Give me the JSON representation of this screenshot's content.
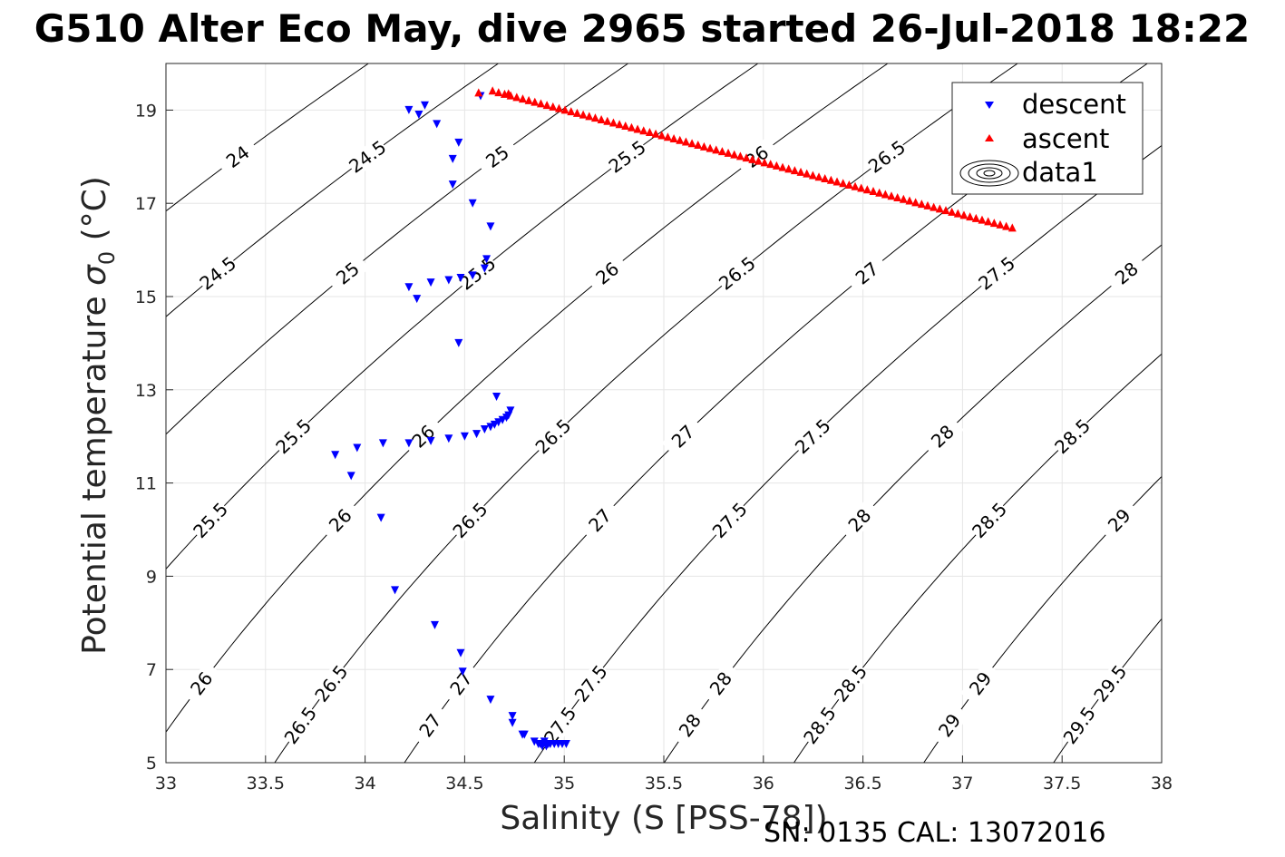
{
  "chart_data": {
    "type": "scatter",
    "title": "G510 Alter Eco May, dive 2965 started 26-Jul-2018 18:22",
    "xlabel": "Salinity (S [PSS-78])",
    "ylabel_text": "Potential temperature ",
    "ylabel_symbol": "σ",
    "ylabel_subscript": "0",
    "ylabel_unit": " (°C)",
    "footer": "SN: 0135  CAL: 13072016",
    "xlim": [
      33,
      38
    ],
    "ylim": [
      5,
      20
    ],
    "xticks": [
      33,
      33.5,
      34,
      34.5,
      35,
      35.5,
      36,
      36.5,
      37,
      37.5,
      38
    ],
    "xtick_labels": [
      "33",
      "33.5",
      "34",
      "34.5",
      "35",
      "35.5",
      "36",
      "36.5",
      "37",
      "37.5",
      "38"
    ],
    "yticks": [
      5,
      7,
      9,
      11,
      13,
      15,
      17,
      19
    ],
    "ytick_labels": [
      "5",
      "7",
      "9",
      "11",
      "13",
      "15",
      "17",
      "19"
    ],
    "grid": true,
    "legend_position": "top-right",
    "legend": [
      "descent",
      "ascent",
      "data1"
    ],
    "colors": {
      "descent": "#0000ff",
      "ascent": "#ff0000",
      "contour": "#000000",
      "grid": "#e6e6e6"
    },
    "series": [
      {
        "name": "descent",
        "marker": "down-triangle",
        "points": [
          [
            34.58,
            19.3
          ],
          [
            34.22,
            19.0
          ],
          [
            34.3,
            19.1
          ],
          [
            34.27,
            18.9
          ],
          [
            34.36,
            18.7
          ],
          [
            34.47,
            18.3
          ],
          [
            34.44,
            17.95
          ],
          [
            34.44,
            17.4
          ],
          [
            34.54,
            17.0
          ],
          [
            34.63,
            16.5
          ],
          [
            34.61,
            15.8
          ],
          [
            34.6,
            15.6
          ],
          [
            34.54,
            15.45
          ],
          [
            34.48,
            15.4
          ],
          [
            34.42,
            15.35
          ],
          [
            34.33,
            15.3
          ],
          [
            34.22,
            15.2
          ],
          [
            34.26,
            14.95
          ],
          [
            34.47,
            14.0
          ],
          [
            34.66,
            12.85
          ],
          [
            34.73,
            12.55
          ],
          [
            34.72,
            12.45
          ],
          [
            34.71,
            12.4
          ],
          [
            34.69,
            12.35
          ],
          [
            34.67,
            12.3
          ],
          [
            34.65,
            12.25
          ],
          [
            34.63,
            12.2
          ],
          [
            34.6,
            12.15
          ],
          [
            34.56,
            12.05
          ],
          [
            34.5,
            12.0
          ],
          [
            34.42,
            11.95
          ],
          [
            34.33,
            11.9
          ],
          [
            34.22,
            11.85
          ],
          [
            34.09,
            11.85
          ],
          [
            33.96,
            11.75
          ],
          [
            33.85,
            11.6
          ],
          [
            33.93,
            11.15
          ],
          [
            34.08,
            10.25
          ],
          [
            34.15,
            8.7
          ],
          [
            34.35,
            7.95
          ],
          [
            34.48,
            7.35
          ],
          [
            34.49,
            6.95
          ],
          [
            34.63,
            6.35
          ],
          [
            34.74,
            6.0
          ],
          [
            34.74,
            5.85
          ],
          [
            34.79,
            5.6
          ],
          [
            34.8,
            5.6
          ],
          [
            34.85,
            5.45
          ],
          [
            34.87,
            5.4
          ],
          [
            34.88,
            5.4
          ],
          [
            34.9,
            5.45
          ],
          [
            34.92,
            5.4
          ],
          [
            34.93,
            5.4
          ],
          [
            34.95,
            5.4
          ],
          [
            34.97,
            5.4
          ],
          [
            34.99,
            5.4
          ],
          [
            35.01,
            5.4
          ],
          [
            34.89,
            5.35
          ],
          [
            34.91,
            5.35
          ]
        ]
      },
      {
        "name": "ascent",
        "marker": "up-triangle",
        "points_start": [
          34.64,
          19.42
        ],
        "points_end": [
          37.25,
          16.48
        ],
        "count": 87,
        "extra_points": [
          [
            34.57,
            19.38
          ],
          [
            34.72,
            19.36
          ]
        ]
      },
      {
        "name": "data1",
        "type": "contour",
        "levels": [
          24,
          24.5,
          25,
          25.5,
          26,
          26.5,
          27,
          27.5,
          28,
          28.5,
          29,
          29.5
        ],
        "level_labels": [
          "24",
          "24.5",
          "25",
          "25.5",
          "26",
          "26.5",
          "27",
          "27.5",
          "28",
          "28.5",
          "29",
          "29.5"
        ]
      }
    ]
  }
}
